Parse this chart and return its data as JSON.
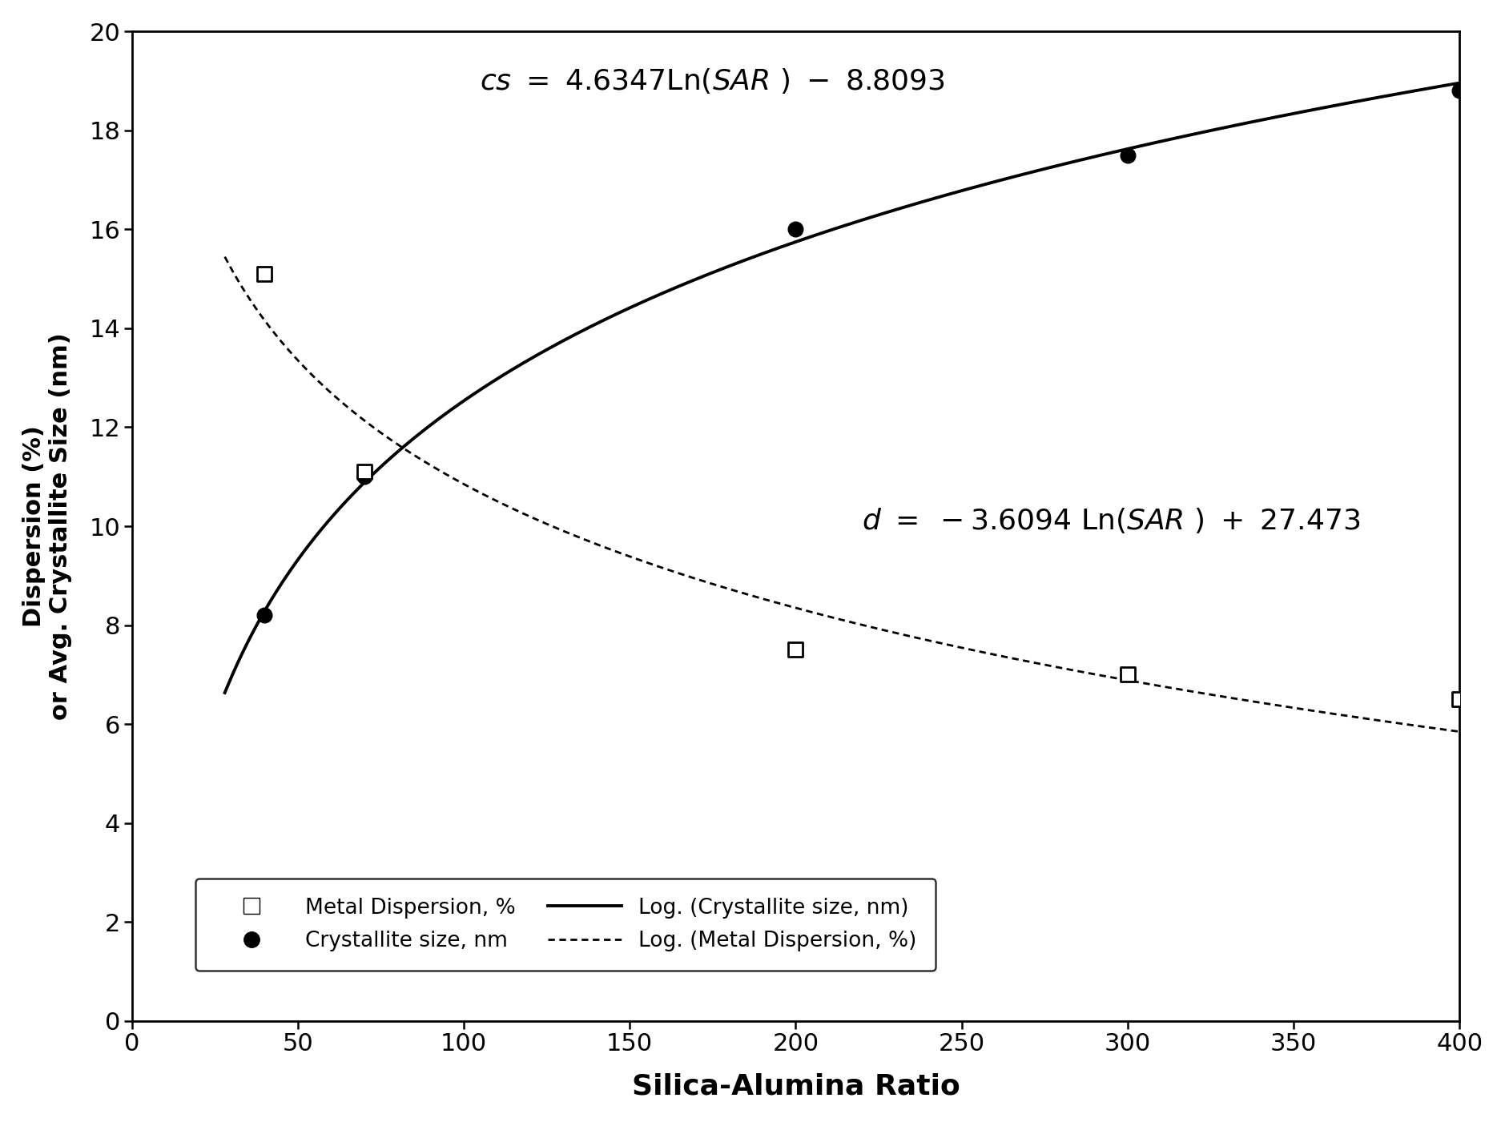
{
  "crystallite_x": [
    40,
    70,
    200,
    300,
    400
  ],
  "crystallite_y": [
    8.2,
    11.0,
    16.0,
    17.5,
    18.8
  ],
  "dispersion_x": [
    40,
    70,
    200,
    300,
    400
  ],
  "dispersion_y": [
    15.1,
    11.1,
    7.5,
    7.0,
    6.5
  ],
  "xlabel": "Silica-Alumina Ratio",
  "ylabel": "Dispersion (%)\nor Avg. Crystallite Size (nm)",
  "xlim": [
    0,
    400
  ],
  "ylim": [
    0,
    20
  ],
  "xticks": [
    0,
    50,
    100,
    150,
    200,
    250,
    300,
    350,
    400
  ],
  "yticks": [
    0,
    2,
    4,
    6,
    8,
    10,
    12,
    14,
    16,
    18,
    20
  ],
  "eq1_x": 175,
  "eq1_y": 19.3,
  "eq2_x": 295,
  "eq2_y": 10.4,
  "bg_color": "#ffffff",
  "legend_labels": [
    "Metal Dispersion, %",
    "Crystallite size, nm",
    "Log. (Crystallite size, nm)",
    "Log. (Metal Dispersion, %)"
  ]
}
